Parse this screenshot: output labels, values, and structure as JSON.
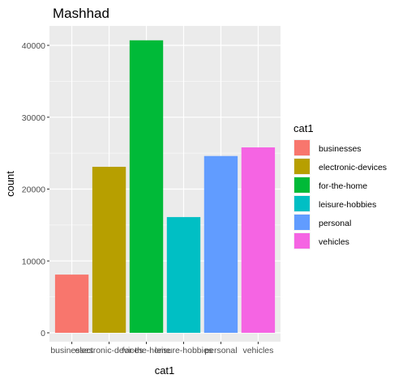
{
  "chart_data": {
    "type": "bar",
    "title": "Mashhad",
    "xlabel": "cat1",
    "ylabel": "count",
    "categories": [
      "businesses",
      "electronic-devices",
      "for-the-home",
      "leisure-hobbies",
      "personal",
      "vehicles"
    ],
    "values": [
      8100,
      23100,
      40700,
      16100,
      24600,
      25800
    ],
    "colors": [
      "#F8766D",
      "#B79F00",
      "#00BA38",
      "#00BFC4",
      "#619CFF",
      "#F564E3"
    ],
    "ylim": [
      0,
      42000
    ],
    "yticks": [
      0,
      10000,
      20000,
      30000,
      40000
    ],
    "ytick_labels": [
      "0",
      "10000",
      "20000",
      "30000",
      "40000"
    ],
    "grid": true,
    "legend": {
      "title": "cat1",
      "position": "right",
      "entries": [
        "businesses",
        "electronic-devices",
        "for-the-home",
        "leisure-hobbies",
        "personal",
        "vehicles"
      ]
    }
  }
}
